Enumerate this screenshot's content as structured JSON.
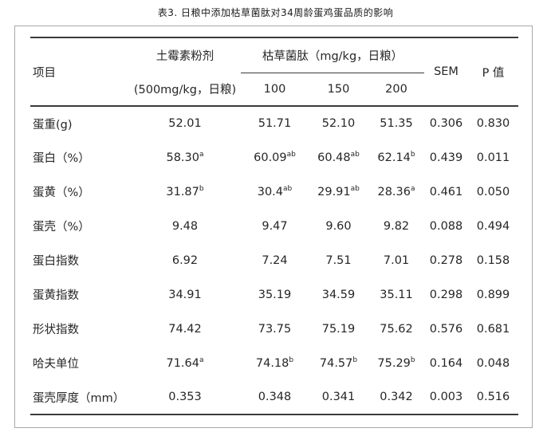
{
  "title": "表3. 日粮中添加枯草菌肽对34周龄蛋鸡蛋品质的影响",
  "colors": {
    "rule": "#3b3b3b",
    "text": "#262626",
    "panel_border": "#a9a9a9",
    "background": "#ffffff"
  },
  "table": {
    "header": {
      "item_col": "项目",
      "control_line1": "土霉素粉剂",
      "control_line2": "(500mg/kg，日粮)",
      "treatment_group": "枯草菌肽（mg/kg，日粮）",
      "doses": [
        "100",
        "150",
        "200"
      ],
      "sem_col": "SEM",
      "p_col": "P 值"
    },
    "rows": [
      {
        "label": "蛋重(g)",
        "cells": [
          {
            "v": "52.01"
          },
          {
            "v": "51.71"
          },
          {
            "v": "52.10"
          },
          {
            "v": "51.35"
          },
          {
            "v": "0.306"
          },
          {
            "v": "0.830"
          }
        ]
      },
      {
        "label": "蛋白（%）",
        "cells": [
          {
            "v": "58.30",
            "sup": "a"
          },
          {
            "v": "60.09",
            "sup": "ab"
          },
          {
            "v": "60.48",
            "sup": "ab"
          },
          {
            "v": "62.14",
            "sup": "b"
          },
          {
            "v": "0.439"
          },
          {
            "v": "0.011"
          }
        ]
      },
      {
        "label": "蛋黄（%）",
        "cells": [
          {
            "v": "31.87",
            "sup": "b"
          },
          {
            "v": "30.4",
            "sup": "ab"
          },
          {
            "v": "29.91",
            "sup": "ab"
          },
          {
            "v": "28.36",
            "sup": "a"
          },
          {
            "v": "0.461"
          },
          {
            "v": "0.050"
          }
        ]
      },
      {
        "label": "蛋壳（%）",
        "cells": [
          {
            "v": "9.48"
          },
          {
            "v": "9.47"
          },
          {
            "v": "9.60"
          },
          {
            "v": "9.82"
          },
          {
            "v": "0.088"
          },
          {
            "v": "0.494"
          }
        ]
      },
      {
        "label": "蛋白指数",
        "cells": [
          {
            "v": "6.92"
          },
          {
            "v": "7.24"
          },
          {
            "v": "7.51"
          },
          {
            "v": "7.01"
          },
          {
            "v": "0.278"
          },
          {
            "v": "0.158"
          }
        ]
      },
      {
        "label": "蛋黄指数",
        "cells": [
          {
            "v": "34.91"
          },
          {
            "v": "35.19"
          },
          {
            "v": "34.59"
          },
          {
            "v": "35.11"
          },
          {
            "v": "0.298"
          },
          {
            "v": "0.899"
          }
        ]
      },
      {
        "label": "形状指数",
        "cells": [
          {
            "v": "74.42"
          },
          {
            "v": "73.75"
          },
          {
            "v": "75.19"
          },
          {
            "v": "75.62"
          },
          {
            "v": "0.576"
          },
          {
            "v": "0.681"
          }
        ]
      },
      {
        "label": "哈夫单位",
        "cells": [
          {
            "v": "71.64",
            "sup": "a"
          },
          {
            "v": "74.18",
            "sup": "b"
          },
          {
            "v": "74.57",
            "sup": "b"
          },
          {
            "v": "75.29",
            "sup": "b"
          },
          {
            "v": "0.164"
          },
          {
            "v": "0.048"
          }
        ]
      },
      {
        "label": "蛋壳厚度（mm）",
        "cells": [
          {
            "v": "0.353"
          },
          {
            "v": "0.348"
          },
          {
            "v": "0.341"
          },
          {
            "v": "0.342"
          },
          {
            "v": "0.003"
          },
          {
            "v": "0.516"
          }
        ]
      }
    ]
  }
}
